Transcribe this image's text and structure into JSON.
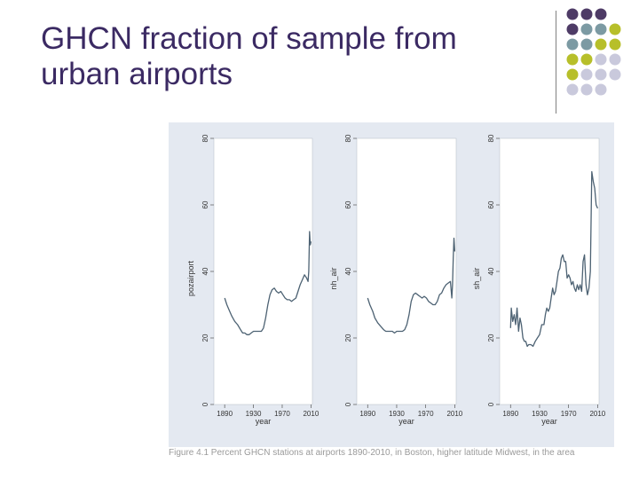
{
  "slide": {
    "title_line1": "GHCN fraction of sample from",
    "title_line2": "urban airports",
    "caption": "Figure 4.1 Percent GHCN stations at airports 1890-2010, in Boston, higher latitude Midwest, in the area"
  },
  "theme": {
    "title_color": "#3b2a63",
    "dot_colors": {
      "purple": "#4e3b66",
      "slate": "#7c9aa3",
      "olive": "#b7bf2a",
      "lavender": "#c9c9dc"
    },
    "panel_background": "#e4e9f1",
    "line_color": "#4d6273"
  },
  "dot_grid": [
    [
      "purple",
      "purple",
      "purple"
    ],
    [
      "purple",
      "slate",
      "slate",
      "olive"
    ],
    [
      "slate",
      "slate",
      "olive",
      "olive"
    ],
    [
      "olive",
      "olive",
      "lavender",
      "lavender"
    ],
    [
      "olive",
      "lavender",
      "lavender",
      "lavender"
    ],
    [
      "lavender",
      "lavender",
      "lavender"
    ]
  ],
  "chart_data": [
    {
      "type": "line",
      "xlabel": "year",
      "ylabel": "pozairport",
      "xlim": [
        1875,
        2012
      ],
      "ylim": [
        0,
        80
      ],
      "xticks": [
        1890,
        1930,
        1970,
        2010
      ],
      "yticks": [
        0,
        20,
        40,
        60,
        80
      ],
      "grid": false,
      "series": [
        {
          "x": [
            1890,
            1893,
            1897,
            1900,
            1904,
            1908,
            1912,
            1915,
            1918,
            1921,
            1924,
            1927,
            1930,
            1934,
            1938,
            1941,
            1944,
            1947,
            1950,
            1953,
            1956,
            1959,
            1962,
            1965,
            1968,
            1971,
            1974,
            1977,
            1980,
            1983,
            1986,
            1989,
            1992,
            1995,
            1998,
            2001,
            2004,
            2006,
            2007,
            2008,
            2009,
            2010
          ],
          "y": [
            32,
            30,
            28,
            26.5,
            25,
            24,
            22.5,
            21.5,
            21.5,
            21,
            21,
            21.5,
            22,
            22,
            22,
            22,
            23,
            26,
            30,
            33,
            34.5,
            35,
            34,
            33.5,
            34,
            33,
            32,
            31.5,
            31.5,
            31,
            31.5,
            32,
            34,
            36,
            37.5,
            39,
            38,
            37,
            40,
            52,
            48,
            49
          ]
        }
      ]
    },
    {
      "type": "line",
      "xlabel": "year",
      "ylabel": "nh_air",
      "xlim": [
        1875,
        2012
      ],
      "ylim": [
        0,
        80
      ],
      "xticks": [
        1890,
        1930,
        1970,
        2010
      ],
      "yticks": [
        0,
        20,
        40,
        60,
        80
      ],
      "grid": false,
      "series": [
        {
          "x": [
            1890,
            1893,
            1897,
            1900,
            1904,
            1908,
            1912,
            1915,
            1918,
            1921,
            1924,
            1927,
            1930,
            1934,
            1938,
            1941,
            1944,
            1947,
            1950,
            1953,
            1956,
            1959,
            1962,
            1965,
            1968,
            1971,
            1974,
            1977,
            1980,
            1983,
            1986,
            1989,
            1992,
            1995,
            1998,
            2001,
            2004,
            2006,
            2007,
            2008,
            2009,
            2010
          ],
          "y": [
            32,
            30,
            28,
            26,
            24.5,
            23.5,
            22.5,
            22,
            22,
            22,
            22,
            21.5,
            22,
            22,
            22,
            22.5,
            24,
            27,
            31,
            33,
            33.5,
            33,
            32.5,
            32,
            32.5,
            32,
            31,
            30.5,
            30,
            30,
            31,
            33,
            33.5,
            35,
            36,
            36.5,
            37,
            32,
            36,
            44,
            50,
            46
          ]
        }
      ]
    },
    {
      "type": "line",
      "xlabel": "year",
      "ylabel": "sh_air",
      "xlim": [
        1875,
        2012
      ],
      "ylim": [
        0,
        80
      ],
      "xticks": [
        1890,
        1930,
        1970,
        2010
      ],
      "yticks": [
        0,
        20,
        40,
        60,
        80
      ],
      "grid": false,
      "series": [
        {
          "x": [
            1890,
            1891,
            1893,
            1895,
            1897,
            1899,
            1901,
            1903,
            1905,
            1907,
            1909,
            1911,
            1913,
            1915,
            1918,
            1921,
            1924,
            1927,
            1930,
            1933,
            1936,
            1938,
            1940,
            1942,
            1944,
            1946,
            1948,
            1950,
            1952,
            1954,
            1956,
            1958,
            1960,
            1962,
            1964,
            1966,
            1968,
            1970,
            1972,
            1974,
            1976,
            1978,
            1980,
            1982,
            1984,
            1986,
            1988,
            1990,
            1992,
            1994,
            1996,
            1998,
            2000,
            2002,
            2004,
            2006,
            2008,
            2010
          ],
          "y": [
            23,
            29,
            25,
            27,
            24,
            29,
            22,
            26,
            24,
            20,
            19,
            19,
            17.5,
            18,
            18,
            17.5,
            19,
            20,
            21,
            24,
            24,
            27,
            29,
            28,
            29,
            32,
            35,
            33,
            34,
            37,
            40,
            41,
            44,
            45,
            43,
            43,
            38,
            39,
            38,
            36,
            37,
            35,
            34,
            36,
            34.5,
            36,
            34,
            43,
            45,
            36,
            33,
            35,
            40,
            70,
            67,
            65,
            60,
            59
          ]
        }
      ]
    }
  ]
}
